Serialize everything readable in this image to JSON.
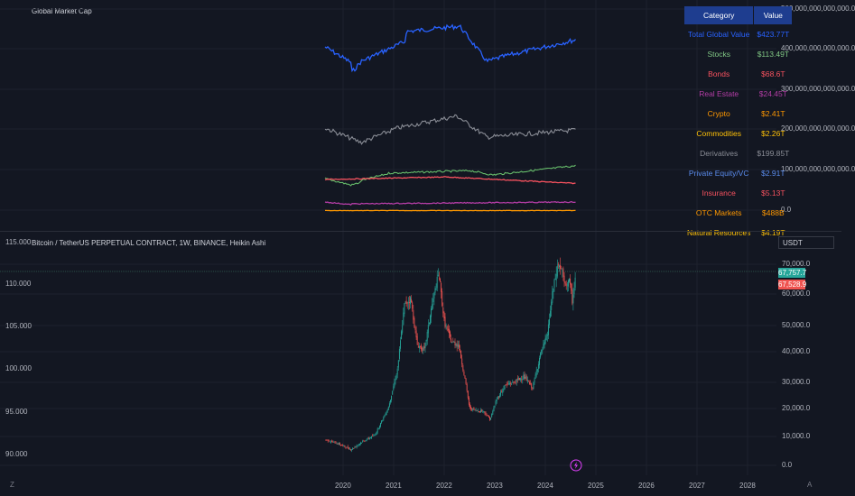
{
  "top_pane": {
    "title": "Global Market Cap",
    "y_axis_labels": [
      "500,000,000,000,000.0",
      "400,000,000,000,000.0",
      "300,000,000,000,000.0",
      "200,000,000,000,000.0",
      "100,000,000,000,000.0",
      "0.0"
    ],
    "series_colors": {
      "total": "#2962ff",
      "derivatives": "#8a8d96",
      "stocks": "#66bb6a",
      "bonds": "#f7525f",
      "real_estate": "#b33da5",
      "crypto": "#ff9800"
    }
  },
  "table": {
    "headers": [
      "Category",
      "Value"
    ],
    "rows": [
      {
        "category": "Total Global Value",
        "value": "$423.77T",
        "color": "#2962ff"
      },
      {
        "category": "Stocks",
        "value": "$113.49T",
        "color": "#81c784"
      },
      {
        "category": "Bonds",
        "value": "$68.6T",
        "color": "#f7525f"
      },
      {
        "category": "Real Estate",
        "value": "$24.45T",
        "color": "#b33da5"
      },
      {
        "category": "Crypto",
        "value": "$2.41T",
        "color": "#ff9800"
      },
      {
        "category": "Commodities",
        "value": "$2.26T",
        "color": "#ffc107"
      },
      {
        "category": "Derivatives",
        "value": "$199.85T",
        "color": "#8a8d96"
      },
      {
        "category": "Private Equity/VC",
        "value": "$2.91T",
        "color": "#5b8def"
      },
      {
        "category": "Insurance",
        "value": "$5.13T",
        "color": "#f7525f"
      },
      {
        "category": "OTC Markets",
        "value": "$488B",
        "color": "#ff9800"
      },
      {
        "category": "Natural Resources",
        "value": "$4.19T",
        "color": "#ffc107"
      }
    ]
  },
  "bottom_pane": {
    "title": "Bitcoin / TetherUS PERPETUAL CONTRACT, 1W, BINANCE, Heikin Ashi",
    "currency": "USDT",
    "left_axis_labels": [
      "115.000",
      "110.000",
      "105.000",
      "100.000",
      "95.000",
      "90.000"
    ],
    "right_axis_labels": [
      "70,000.0",
      "60,000.0",
      "50,000.0",
      "40,000.0",
      "30,000.0",
      "20,000.0",
      "10,000.0",
      "0.0"
    ],
    "price_tag_up": "67,757.7",
    "price_tag_down": "67,528.9",
    "x_axis_labels": [
      "2020",
      "2021",
      "2022",
      "2023",
      "2024",
      "2025",
      "2026",
      "2027",
      "2028"
    ],
    "bottom_left_icon": "Z",
    "bottom_right_icon": "A",
    "up_color": "#26a69a",
    "down_color": "#ef5350"
  }
}
